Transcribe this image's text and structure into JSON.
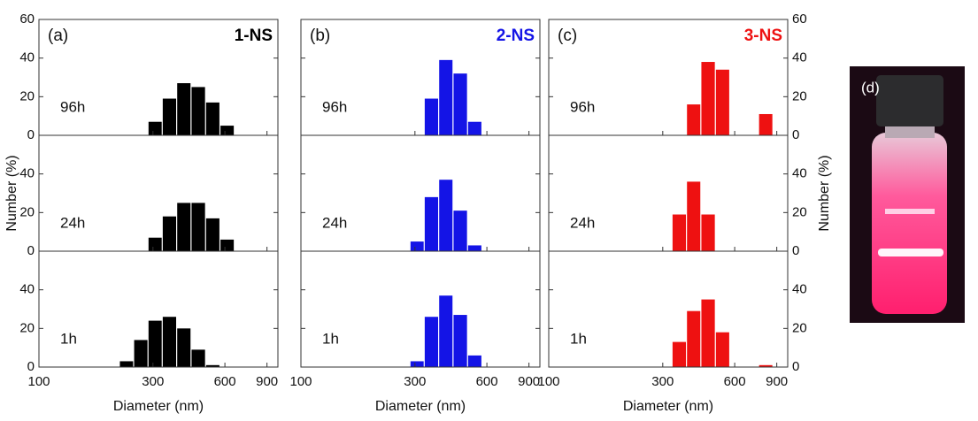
{
  "chart_data": [
    {
      "type": "histogram",
      "panel_label": "(a)",
      "sample": "1-NS",
      "time": "96h",
      "color": "#000000",
      "bins": [
        217,
        249,
        286,
        328,
        377,
        433,
        498,
        572,
        657,
        755,
        867,
        995
      ],
      "values": [
        0,
        0,
        7,
        19,
        27,
        25,
        17,
        5,
        0,
        0,
        0
      ],
      "xscale": "log",
      "xlim": [
        100,
        1000
      ],
      "xticks": [
        100,
        300,
        600,
        900
      ],
      "ylim": [
        0,
        60
      ],
      "yticks": [
        0,
        20,
        40,
        60
      ],
      "ytick_labels": "left"
    },
    {
      "type": "histogram",
      "time": "24h",
      "color": "#000000",
      "ylabel": "Number (%)",
      "bins": [
        217,
        249,
        286,
        328,
        377,
        433,
        498,
        572,
        657,
        755,
        867,
        995
      ],
      "values": [
        0,
        0,
        7,
        18,
        25,
        25,
        17,
        6,
        0,
        0,
        0
      ],
      "xscale": "log",
      "xlim": [
        100,
        1000
      ],
      "xticks": [
        100,
        300,
        600,
        900
      ],
      "ylim": [
        0,
        60
      ],
      "yticks": [
        0,
        20,
        40
      ],
      "ytick_labels": "left"
    },
    {
      "type": "histogram",
      "time": "1h",
      "color": "#000000",
      "xlabel": "Diameter (nm)",
      "bins": [
        217,
        249,
        286,
        328,
        377,
        433,
        498,
        572,
        657,
        755,
        867,
        995
      ],
      "values": [
        3,
        14,
        24,
        26,
        20,
        9,
        1,
        0,
        0,
        0,
        0
      ],
      "xscale": "log",
      "xlim": [
        100,
        1000
      ],
      "xticks": [
        100,
        300,
        600,
        900
      ],
      "xtick_labels": true,
      "ylim": [
        0,
        60
      ],
      "yticks": [
        0,
        20,
        40
      ],
      "ytick_labels": "left"
    },
    {
      "type": "histogram",
      "panel_label": "(b)",
      "sample": "2-NS",
      "time": "96h",
      "color": "#1414e6",
      "bins": [
        217,
        249,
        286,
        328,
        377,
        433,
        498,
        572,
        657,
        755,
        867,
        995
      ],
      "values": [
        0,
        0,
        0,
        19,
        39,
        32,
        7,
        0,
        0,
        0,
        0
      ],
      "xscale": "log",
      "xlim": [
        100,
        1000
      ],
      "xticks": [
        100,
        300,
        600,
        900
      ],
      "ylim": [
        0,
        60
      ],
      "yticks": [
        0,
        20,
        40,
        60
      ],
      "ytick_labels": "none"
    },
    {
      "type": "histogram",
      "time": "24h",
      "color": "#1414e6",
      "bins": [
        217,
        249,
        286,
        328,
        377,
        433,
        498,
        572,
        657,
        755,
        867,
        995
      ],
      "values": [
        0,
        0,
        5,
        28,
        37,
        21,
        3,
        0,
        0,
        0,
        0
      ],
      "xscale": "log",
      "xlim": [
        100,
        1000
      ],
      "xticks": [
        100,
        300,
        600,
        900
      ],
      "ylim": [
        0,
        60
      ],
      "yticks": [
        0,
        20,
        40
      ],
      "ytick_labels": "none"
    },
    {
      "type": "histogram",
      "time": "1h",
      "color": "#1414e6",
      "xlabel": "Diameter (nm)",
      "bins": [
        217,
        249,
        286,
        328,
        377,
        433,
        498,
        572,
        657,
        755,
        867,
        995
      ],
      "values": [
        0,
        0,
        3,
        26,
        37,
        27,
        6,
        0,
        0,
        0,
        0
      ],
      "xscale": "log",
      "xlim": [
        100,
        1000
      ],
      "xticks": [
        100,
        300,
        600,
        900
      ],
      "xtick_labels": true,
      "ylim": [
        0,
        60
      ],
      "yticks": [
        0,
        20,
        40
      ],
      "ytick_labels": "none"
    },
    {
      "type": "histogram",
      "panel_label": "(c)",
      "sample": "3-NS",
      "time": "96h",
      "color": "#ee1111",
      "bins": [
        217,
        249,
        286,
        328,
        377,
        433,
        498,
        572,
        657,
        755,
        867,
        995
      ],
      "values": [
        0,
        0,
        0,
        0,
        16,
        38,
        34,
        0,
        0,
        11,
        0
      ],
      "xscale": "log",
      "xlim": [
        100,
        1000
      ],
      "xticks": [
        100,
        300,
        600,
        900
      ],
      "ylim": [
        0,
        60
      ],
      "yticks": [
        0,
        20,
        40,
        60
      ],
      "ytick_labels": "right"
    },
    {
      "type": "histogram",
      "time": "24h",
      "color": "#ee1111",
      "ylabel": "Number (%)",
      "bins": [
        217,
        249,
        286,
        328,
        377,
        433,
        498,
        572,
        657,
        755,
        867,
        995
      ],
      "values": [
        0,
        0,
        0,
        19,
        36,
        19,
        0,
        0,
        0,
        0,
        0
      ],
      "xscale": "log",
      "xlim": [
        100,
        1000
      ],
      "xticks": [
        100,
        300,
        600,
        900
      ],
      "ylim": [
        0,
        60
      ],
      "yticks": [
        0,
        20,
        40
      ],
      "ytick_labels": "right"
    },
    {
      "type": "histogram",
      "time": "1h",
      "color": "#ee1111",
      "xlabel": "Diameter (nm)",
      "bins": [
        217,
        249,
        286,
        328,
        377,
        433,
        498,
        572,
        657,
        755,
        867,
        995
      ],
      "values": [
        0,
        0,
        0,
        13,
        29,
        35,
        18,
        0,
        0,
        1,
        0
      ],
      "xscale": "log",
      "xlim": [
        100,
        1000
      ],
      "xticks": [
        100,
        300,
        600,
        900
      ],
      "xtick_labels": true,
      "ylim": [
        0,
        60
      ],
      "yticks": [
        0,
        20,
        40
      ],
      "ytick_labels": "right"
    }
  ],
  "photo": {
    "label": "(d)"
  }
}
